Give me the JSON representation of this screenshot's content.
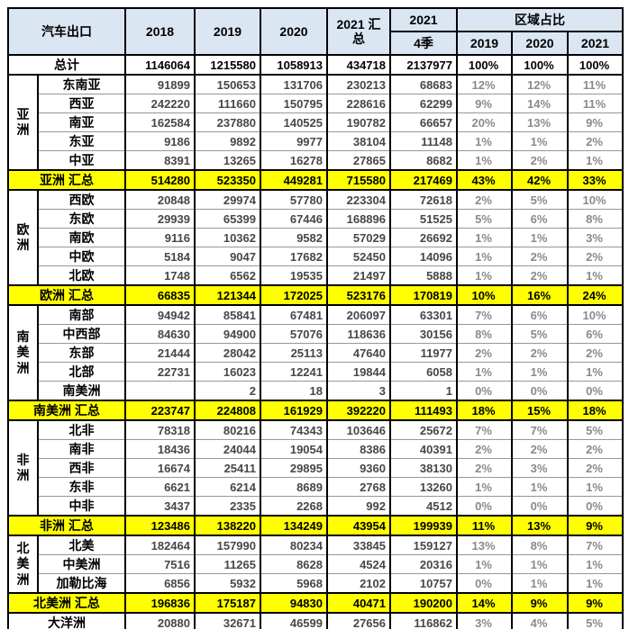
{
  "header": {
    "title": "汽车出口",
    "years": [
      "2018",
      "2019",
      "2020"
    ],
    "summary_2021": "2021 汇总",
    "q4_year": "2021",
    "q4_label": "4季",
    "share_title": "区域占比",
    "share_years": [
      "2019",
      "2020",
      "2021"
    ]
  },
  "colors": {
    "header_bg": "#dae6f2",
    "summary_bg": "#ffff00",
    "border": "#000000",
    "number_gray": "#474747",
    "pct_gray": "#8a8a8a"
  },
  "chart_data": {
    "type": "table",
    "title": "汽车出口",
    "columns": [
      "汽车出口",
      "2018",
      "2019",
      "2020",
      "2021 汇总",
      "2021 4季",
      "区域占比 2019",
      "区域占比 2020",
      "区域占比 2021"
    ],
    "total_row": {
      "label": "总计",
      "values": [
        1146064,
        1215580,
        1058913,
        434718,
        2137977
      ],
      "pcts": [
        "100%",
        "100%",
        "100%"
      ]
    },
    "groups": [
      {
        "region": "亚洲",
        "rows": [
          {
            "label": "东南亚",
            "values": [
              91899,
              150653,
              131706,
              230213,
              68683
            ],
            "pcts": [
              "12%",
              "12%",
              "11%"
            ]
          },
          {
            "label": "西亚",
            "values": [
              242220,
              111660,
              150795,
              228616,
              62299
            ],
            "pcts": [
              "9%",
              "14%",
              "11%"
            ]
          },
          {
            "label": "南亚",
            "values": [
              162584,
              237880,
              140525,
              190782,
              66657
            ],
            "pcts": [
              "20%",
              "13%",
              "9%"
            ]
          },
          {
            "label": "东亚",
            "values": [
              9186,
              9892,
              9977,
              38104,
              11148
            ],
            "pcts": [
              "1%",
              "1%",
              "2%"
            ]
          },
          {
            "label": "中亚",
            "values": [
              8391,
              13265,
              16278,
              27865,
              8682
            ],
            "pcts": [
              "1%",
              "2%",
              "1%"
            ]
          }
        ],
        "summary": {
          "label": "亚洲 汇总",
          "values": [
            514280,
            523350,
            449281,
            715580,
            217469
          ],
          "pcts": [
            "43%",
            "42%",
            "33%"
          ]
        }
      },
      {
        "region": "欧洲",
        "rows": [
          {
            "label": "西欧",
            "values": [
              20848,
              29974,
              57780,
              223304,
              72618
            ],
            "pcts": [
              "2%",
              "5%",
              "10%"
            ]
          },
          {
            "label": "东欧",
            "values": [
              29939,
              65399,
              67446,
              168896,
              51525
            ],
            "pcts": [
              "5%",
              "6%",
              "8%"
            ]
          },
          {
            "label": "南欧",
            "values": [
              9116,
              10362,
              9582,
              57029,
              26692
            ],
            "pcts": [
              "1%",
              "1%",
              "3%"
            ]
          },
          {
            "label": "中欧",
            "values": [
              5184,
              9047,
              17682,
              52450,
              14096
            ],
            "pcts": [
              "1%",
              "2%",
              "2%"
            ]
          },
          {
            "label": "北欧",
            "values": [
              1748,
              6562,
              19535,
              21497,
              5888
            ],
            "pcts": [
              "1%",
              "2%",
              "1%"
            ]
          }
        ],
        "summary": {
          "label": "欧洲 汇总",
          "values": [
            66835,
            121344,
            172025,
            523176,
            170819
          ],
          "pcts": [
            "10%",
            "16%",
            "24%"
          ]
        }
      },
      {
        "region": "南美洲",
        "rows": [
          {
            "label": "南部",
            "values": [
              94942,
              85841,
              67481,
              206097,
              63301
            ],
            "pcts": [
              "7%",
              "6%",
              "10%"
            ]
          },
          {
            "label": "中西部",
            "values": [
              84630,
              94900,
              57076,
              118636,
              30156
            ],
            "pcts": [
              "8%",
              "5%",
              "6%"
            ]
          },
          {
            "label": "东部",
            "values": [
              21444,
              28042,
              25113,
              47640,
              11977
            ],
            "pcts": [
              "2%",
              "2%",
              "2%"
            ]
          },
          {
            "label": "北部",
            "values": [
              22731,
              16023,
              12241,
              19844,
              6058
            ],
            "pcts": [
              "1%",
              "1%",
              "1%"
            ]
          },
          {
            "label": "南美洲",
            "values": [
              "",
              2,
              18,
              3,
              1
            ],
            "pcts": [
              "0%",
              "0%",
              "0%"
            ]
          }
        ],
        "summary": {
          "label": "南美洲 汇总",
          "values": [
            223747,
            224808,
            161929,
            392220,
            111493
          ],
          "pcts": [
            "18%",
            "15%",
            "18%"
          ]
        }
      },
      {
        "region": "非洲",
        "rows": [
          {
            "label": "北非",
            "values": [
              78318,
              80216,
              74343,
              103646,
              25672
            ],
            "pcts": [
              "7%",
              "7%",
              "5%"
            ]
          },
          {
            "label": "南非",
            "values": [
              18436,
              24044,
              19054,
              8386,
              40391
            ],
            "pcts": [
              "2%",
              "2%",
              "2%"
            ]
          },
          {
            "label": "西非",
            "values": [
              16674,
              25411,
              29895,
              9360,
              38130
            ],
            "pcts": [
              "2%",
              "3%",
              "2%"
            ]
          },
          {
            "label": "东非",
            "values": [
              6621,
              6214,
              8689,
              2768,
              13260
            ],
            "pcts": [
              "1%",
              "1%",
              "1%"
            ]
          },
          {
            "label": "中非",
            "values": [
              3437,
              2335,
              2268,
              992,
              4512
            ],
            "pcts": [
              "0%",
              "0%",
              "0%"
            ]
          }
        ],
        "summary": {
          "label": "非洲 汇总",
          "values": [
            123486,
            138220,
            134249,
            43954,
            199939
          ],
          "pcts": [
            "11%",
            "13%",
            "9%"
          ]
        }
      },
      {
        "region": "北美洲",
        "rows": [
          {
            "label": "北美",
            "values": [
              182464,
              157990,
              80234,
              33845,
              159127
            ],
            "pcts": [
              "13%",
              "8%",
              "7%"
            ]
          },
          {
            "label": "中美洲",
            "values": [
              7516,
              11265,
              8628,
              4524,
              20316
            ],
            "pcts": [
              "1%",
              "1%",
              "1%"
            ]
          },
          {
            "label": "加勒比海",
            "values": [
              6856,
              5932,
              5968,
              2102,
              10757
            ],
            "pcts": [
              "0%",
              "1%",
              "1%"
            ]
          }
        ],
        "summary": {
          "label": "北美洲 汇总",
          "values": [
            196836,
            175187,
            94830,
            40471,
            190200
          ],
          "pcts": [
            "14%",
            "9%",
            "9%"
          ]
        }
      }
    ],
    "oceania": {
      "label": "大洋洲",
      "values": [
        20880,
        32671,
        46599,
        27656,
        116862
      ],
      "pcts": [
        "3%",
        "4%",
        "5%"
      ]
    }
  }
}
